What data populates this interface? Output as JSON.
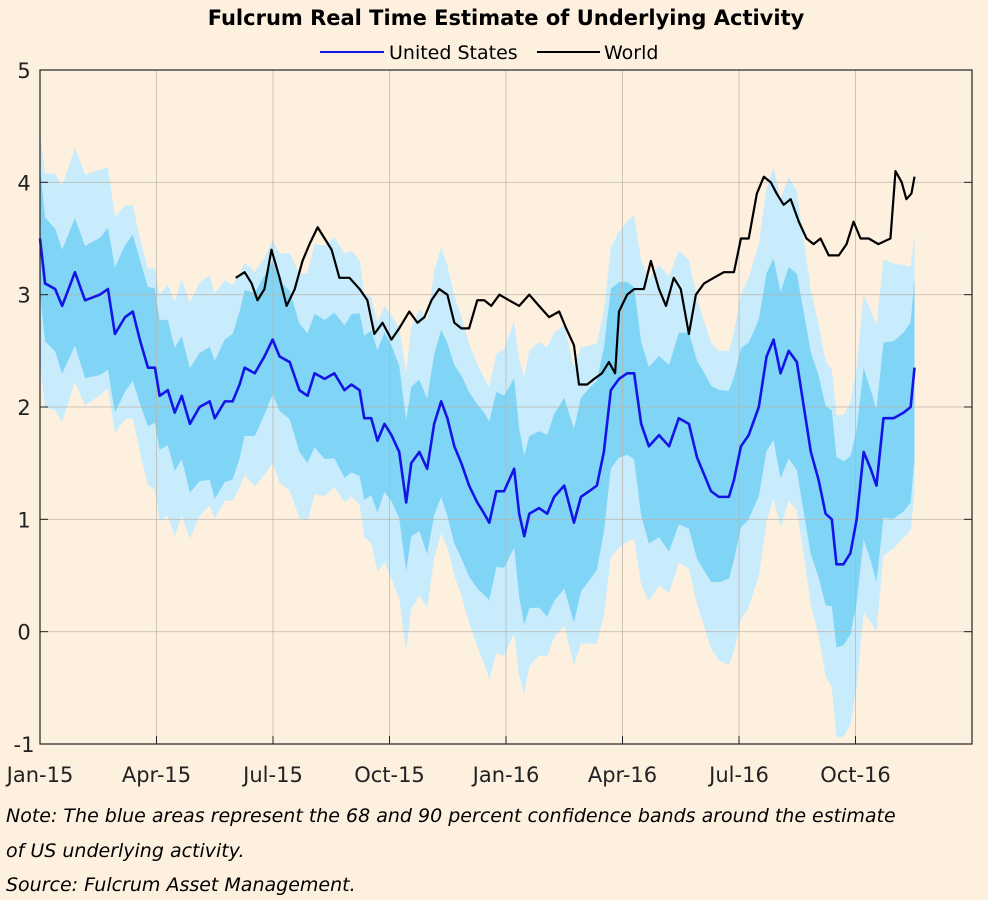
{
  "chart_data": {
    "type": "line",
    "title": "Fulcrum Real Time Estimate of Underlying Activity",
    "xlabel": "",
    "ylabel": "",
    "x_units": "months since Jan-15",
    "xlim": [
      0,
      24
    ],
    "ylim": [
      -1,
      5
    ],
    "grid": true,
    "legend_position": "top-center",
    "x_ticks": [
      {
        "value": 0,
        "label": "Jan-15"
      },
      {
        "value": 3,
        "label": "Apr-15"
      },
      {
        "value": 6,
        "label": "Jul-15"
      },
      {
        "value": 9,
        "label": "Oct-15"
      },
      {
        "value": 12,
        "label": "Jan-16"
      },
      {
        "value": 15,
        "label": "Apr-16"
      },
      {
        "value": 18,
        "label": "Jul-16"
      },
      {
        "value": 21,
        "label": "Oct-16"
      }
    ],
    "y_ticks": [
      {
        "value": 5,
        "label": "5"
      },
      {
        "value": 4,
        "label": "4"
      },
      {
        "value": 3,
        "label": "3"
      },
      {
        "value": 2,
        "label": "2"
      },
      {
        "value": 1,
        "label": "1"
      },
      {
        "value": 0,
        "label": "0"
      },
      {
        "value": -1,
        "label": "-1"
      }
    ],
    "colors": {
      "background": "#fdf0df",
      "band90": "#c8ecfb",
      "band68": "#80d5f6",
      "us": "#1414e6",
      "world": "#000000"
    },
    "band_halfwidths": {
      "description_points": [
        [
          0,
          0.6,
          1.0
        ],
        [
          6,
          0.6,
          1.0
        ],
        [
          12,
          0.8,
          1.35
        ],
        [
          20.5,
          0.85,
          1.45
        ],
        [
          22.5,
          0.75,
          1.2
        ]
      ]
    },
    "series": [
      {
        "name": "United States",
        "x": [
          0,
          0.13,
          0.39,
          0.57,
          0.9,
          1.16,
          1.54,
          1.75,
          1.93,
          2.19,
          2.39,
          2.57,
          2.78,
          2.96,
          3.08,
          3.29,
          3.47,
          3.65,
          3.86,
          4.11,
          4.37,
          4.5,
          4.76,
          4.96,
          5.14,
          5.27,
          5.53,
          5.78,
          5.99,
          6.17,
          6.43,
          6.68,
          6.89,
          7.07,
          7.33,
          7.58,
          7.84,
          8.02,
          8.23,
          8.35,
          8.53,
          8.69,
          8.87,
          9.05,
          9.25,
          9.43,
          9.56,
          9.77,
          9.97,
          10.15,
          10.33,
          10.49,
          10.67,
          10.85,
          11.05,
          11.26,
          11.44,
          11.57,
          11.75,
          11.95,
          12.21,
          12.34,
          12.47,
          12.6,
          12.85,
          13.06,
          13.24,
          13.5,
          13.75,
          13.93,
          14.14,
          14.34,
          14.52,
          14.7,
          14.91,
          15.12,
          15.3,
          15.48,
          15.68,
          15.94,
          16.2,
          16.45,
          16.71,
          16.92,
          17.1,
          17.28,
          17.48,
          17.74,
          17.87,
          18.05,
          18.25,
          18.51,
          18.71,
          18.89,
          19.07,
          19.28,
          19.49,
          19.67,
          19.85,
          20.05,
          20.23,
          20.39,
          20.51,
          20.69,
          20.87,
          21.03,
          21.21,
          21.39,
          21.54,
          21.72,
          21.98,
          22.24,
          22.42,
          22.52
        ],
        "y": [
          3.5,
          3.1,
          3.05,
          2.9,
          3.2,
          2.95,
          3.0,
          3.05,
          2.65,
          2.8,
          2.85,
          2.6,
          2.35,
          2.35,
          2.1,
          2.15,
          1.95,
          2.1,
          1.85,
          2.0,
          2.05,
          1.9,
          2.05,
          2.05,
          2.2,
          2.35,
          2.3,
          2.45,
          2.6,
          2.45,
          2.4,
          2.15,
          2.1,
          2.3,
          2.25,
          2.3,
          2.15,
          2.2,
          2.15,
          1.9,
          1.9,
          1.7,
          1.85,
          1.75,
          1.6,
          1.15,
          1.5,
          1.6,
          1.45,
          1.85,
          2.05,
          1.9,
          1.65,
          1.5,
          1.3,
          1.15,
          1.05,
          0.97,
          1.25,
          1.25,
          1.45,
          1.05,
          0.85,
          1.05,
          1.1,
          1.05,
          1.2,
          1.3,
          0.97,
          1.2,
          1.25,
          1.3,
          1.6,
          2.15,
          2.25,
          2.3,
          2.3,
          1.85,
          1.65,
          1.75,
          1.65,
          1.9,
          1.85,
          1.55,
          1.4,
          1.25,
          1.2,
          1.2,
          1.35,
          1.65,
          1.75,
          2.0,
          2.45,
          2.6,
          2.3,
          2.5,
          2.4,
          2.0,
          1.6,
          1.35,
          1.05,
          1.0,
          0.6,
          0.6,
          0.7,
          1.0,
          1.6,
          1.45,
          1.3,
          1.9,
          1.9,
          1.95,
          2.0,
          2.35
        ]
      },
      {
        "name": "World",
        "x": [
          5.04,
          5.27,
          5.45,
          5.6,
          5.78,
          5.96,
          6.17,
          6.35,
          6.56,
          6.76,
          6.94,
          7.15,
          7.33,
          7.51,
          7.71,
          7.97,
          8.23,
          8.43,
          8.61,
          8.82,
          9.05,
          9.25,
          9.51,
          9.72,
          9.9,
          10.08,
          10.28,
          10.49,
          10.67,
          10.85,
          11.05,
          11.26,
          11.44,
          11.62,
          11.83,
          12.08,
          12.34,
          12.6,
          12.85,
          13.11,
          13.37,
          13.55,
          13.75,
          13.88,
          14.09,
          14.27,
          14.47,
          14.65,
          14.81,
          14.91,
          15.12,
          15.3,
          15.55,
          15.73,
          15.94,
          16.12,
          16.32,
          16.5,
          16.71,
          16.89,
          17.1,
          17.35,
          17.61,
          17.87,
          18.05,
          18.25,
          18.46,
          18.64,
          18.82,
          18.97,
          19.15,
          19.33,
          19.54,
          19.74,
          19.92,
          20.1,
          20.31,
          20.57,
          20.77,
          20.95,
          21.13,
          21.34,
          21.59,
          21.9,
          22.03,
          22.19,
          22.31,
          22.44,
          22.52
        ],
        "y": [
          3.15,
          3.2,
          3.1,
          2.95,
          3.05,
          3.4,
          3.15,
          2.9,
          3.05,
          3.3,
          3.45,
          3.6,
          3.5,
          3.4,
          3.15,
          3.15,
          3.05,
          2.95,
          2.65,
          2.75,
          2.6,
          2.7,
          2.85,
          2.75,
          2.8,
          2.95,
          3.05,
          3.0,
          2.75,
          2.7,
          2.7,
          2.95,
          2.95,
          2.9,
          3.0,
          2.95,
          2.9,
          3.0,
          2.9,
          2.8,
          2.85,
          2.7,
          2.55,
          2.2,
          2.2,
          2.25,
          2.3,
          2.4,
          2.3,
          2.85,
          3.0,
          3.05,
          3.05,
          3.3,
          3.05,
          2.9,
          3.15,
          3.05,
          2.65,
          3.0,
          3.1,
          3.15,
          3.2,
          3.2,
          3.5,
          3.5,
          3.9,
          4.05,
          4.0,
          3.9,
          3.8,
          3.85,
          3.65,
          3.5,
          3.45,
          3.5,
          3.35,
          3.35,
          3.45,
          3.65,
          3.5,
          3.5,
          3.45,
          3.5,
          4.1,
          4.0,
          3.85,
          3.9,
          4.05
        ]
      }
    ]
  },
  "notes": {
    "line1": "Note: The blue areas represent the 68 and 90 percent confidence bands around the estimate",
    "line2": "of US underlying activity.",
    "line3": "Source: Fulcrum Asset Management."
  }
}
